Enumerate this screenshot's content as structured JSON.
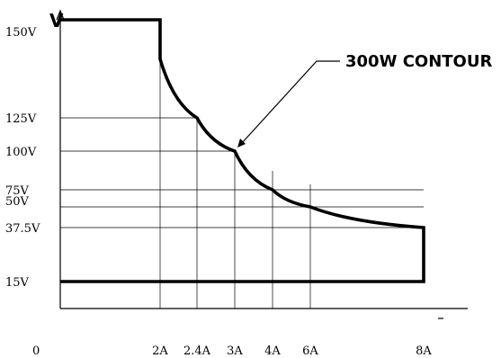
{
  "chart_data": {
    "type": "line",
    "title": "",
    "xlabel": "",
    "ylabel": "V",
    "origin_label": "0",
    "y_ticks": [
      {
        "value": 150,
        "label": "150V"
      },
      {
        "value": 125,
        "label": "125V"
      },
      {
        "value": 100,
        "label": "100V"
      },
      {
        "value": 75,
        "label": "75V"
      },
      {
        "value": 50,
        "label": "50V"
      },
      {
        "value": 37.5,
        "label": "37.5V"
      },
      {
        "value": 15,
        "label": "15V"
      }
    ],
    "x_ticks": [
      {
        "value": 2,
        "label": "2A"
      },
      {
        "value": 2.4,
        "label": "2.4A"
      },
      {
        "value": 3,
        "label": "3A"
      },
      {
        "value": 4,
        "label": "4A"
      },
      {
        "value": 6,
        "label": "6A"
      },
      {
        "value": 8,
        "label": "8A"
      }
    ],
    "series": [
      {
        "name": "",
        "points": [
          {
            "x": 0,
            "y": 150
          },
          {
            "x": 2,
            "y": 150
          },
          {
            "x": 2,
            "y": 140
          },
          {
            "x": 2.4,
            "y": 125
          },
          {
            "x": 3,
            "y": 100
          },
          {
            "x": 4,
            "y": 75
          },
          {
            "x": 6,
            "y": 50
          },
          {
            "x": 8,
            "y": 37.5
          },
          {
            "x": 8,
            "y": 15
          },
          {
            "x": 0,
            "y": 15
          }
        ]
      }
    ],
    "annotation": {
      "text": "300W CONTOUR",
      "x": 3,
      "y": 100
    }
  }
}
